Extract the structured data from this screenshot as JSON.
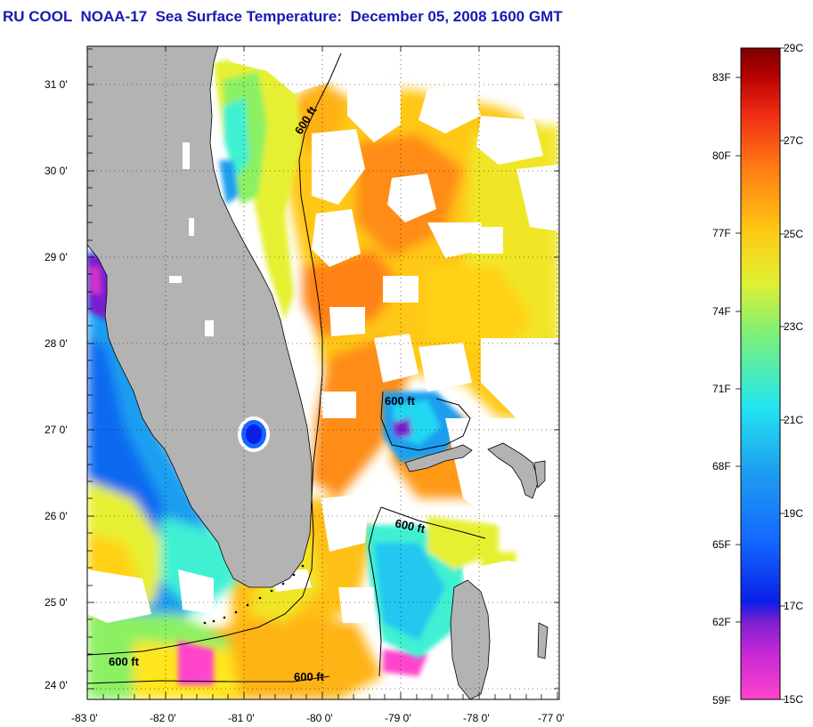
{
  "title": "RU COOL  NOAA-17  Sea Surface Temperature:  December 05, 2008 1600 GMT",
  "axes": {
    "lat_ticks": [
      "31 0'",
      "30 0'",
      "29 0'",
      "28 0'",
      "27 0'",
      "26 0'",
      "25 0'",
      "24 0'"
    ],
    "lon_ticks": [
      "-83 0'",
      "-82 0'",
      "-81 0'",
      "-80 0'",
      "-79 0'",
      "-78 0'",
      "-77 0'"
    ]
  },
  "contours": {
    "label_1": "600 ft",
    "label_2": "600 ft",
    "label_3": "600 ft",
    "label_4": "600 ft",
    "label_5": "600 ft"
  },
  "colorbar": {
    "fahrenheit": [
      "83F",
      "80F",
      "77F",
      "74F",
      "71F",
      "68F",
      "65F",
      "62F",
      "59F"
    ],
    "celsius": [
      "29C",
      "27C",
      "25C",
      "23C",
      "21C",
      "19C",
      "17C",
      "15C"
    ],
    "range_c": [
      15,
      29
    ],
    "colors": {
      "15C": "#ff44cc",
      "16C": "#7a1fd0",
      "17C": "#0a1ee6",
      "18C": "#1466ff",
      "19C": "#1e9ef0",
      "20C": "#23d7f0",
      "21C": "#3ff0d2",
      "22C": "#8cf064",
      "23C": "#e0f032",
      "24C": "#ffe61e",
      "25C": "#ffc014",
      "26C": "#ff8c14",
      "27C": "#ff5a14",
      "28C": "#e6141e",
      "29C": "#820000"
    }
  },
  "colors": {
    "title": "#1919b4",
    "land": "#b3b3b3",
    "no_data": "#ffffff"
  }
}
